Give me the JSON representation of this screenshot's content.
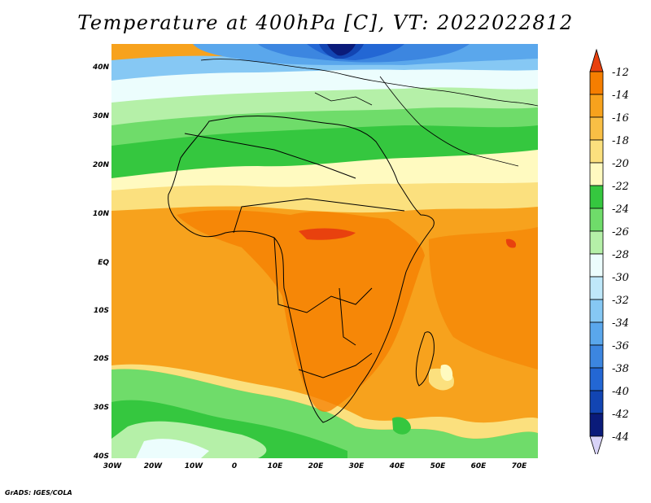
{
  "title": "Temperature at 400hPa [C], VT: 2022022812",
  "credit": "GrADS: IGES/COLA",
  "lat_labels": [
    "40N",
    "30N",
    "20N",
    "10N",
    "EQ",
    "10S",
    "20S",
    "30S",
    "40S"
  ],
  "lon_labels": [
    "30W",
    "20W",
    "10W",
    "0",
    "10E",
    "20E",
    "30E",
    "40E",
    "50E",
    "60E",
    "70E"
  ],
  "colorbar": {
    "labels": [
      "-12",
      "-14",
      "-16",
      "-18",
      "-20",
      "-22",
      "-24",
      "-26",
      "-28",
      "-30",
      "-32",
      "-34",
      "-36",
      "-38",
      "-40",
      "-42",
      "-44"
    ],
    "colors": [
      "#e8410e",
      "#f57e00",
      "#f7a21d",
      "#f9bf45",
      "#fbe07e",
      "#fffac0",
      "#35c73f",
      "#6fdc6a",
      "#b5f0a8",
      "#ecfdfd",
      "#bfe8fa",
      "#86c8f4",
      "#5aa7ec",
      "#3c86e0",
      "#2367d4",
      "#1245b3",
      "#0a1b7a",
      "#d8d3f7"
    ]
  },
  "colors": {
    "ocean_warm": "#f7a21d",
    "land_warm": "#f57e00",
    "border": "#000000"
  }
}
